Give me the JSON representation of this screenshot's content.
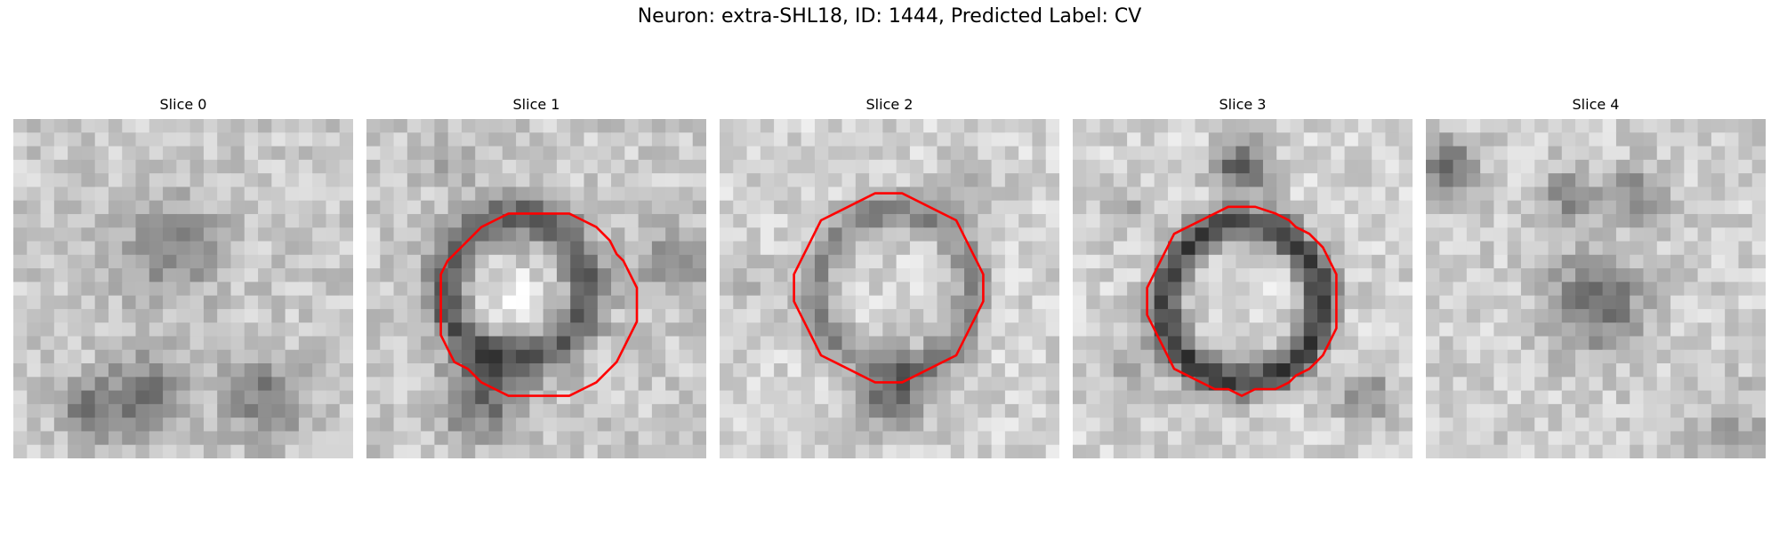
{
  "figure": {
    "title": "Neuron: extra-SHL18, ID: 1444, Predicted Label: CV"
  },
  "panels": [
    {
      "label": "Slice 0",
      "has_contour": false
    },
    {
      "label": "Slice 1",
      "has_contour": true
    },
    {
      "label": "Slice 2",
      "has_contour": true
    },
    {
      "label": "Slice 3",
      "has_contour": true
    },
    {
      "label": "Slice 4",
      "has_contour": false
    }
  ],
  "colors": {
    "contour": "#ff0000",
    "background": "#ffffff"
  }
}
